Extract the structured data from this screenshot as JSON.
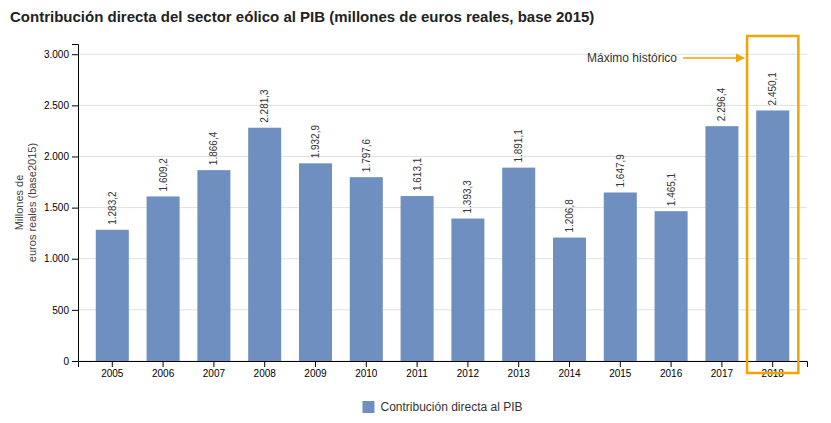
{
  "chart_data": {
    "type": "bar",
    "title": "Contribución directa del sector eólico al PIB (millones de euros reales, base 2015)",
    "ylabel": "Millones de\neuros reales (base2015)",
    "categories": [
      "2005",
      "2006",
      "2007",
      "2008",
      "2009",
      "2010",
      "2011",
      "2012",
      "2013",
      "2014",
      "2015",
      "2016",
      "2017",
      "2018"
    ],
    "series": [
      {
        "name": "Contribución directa al PIB",
        "color": "#6e8fbf",
        "values": [
          1283.2,
          1609.2,
          1866.4,
          2281.3,
          1932.9,
          1797.6,
          1613.1,
          1393.3,
          1891.1,
          1206.8,
          1647.9,
          1465.1,
          2296.4,
          2450.1
        ],
        "value_labels": [
          "1.283,2",
          "1.609,2",
          "1.866,4",
          "2.281,3",
          "1.932,9",
          "1.797,6",
          "1.613,1",
          "1.393,3",
          "1.891,1",
          "1.206,8",
          "1.647,9",
          "1.465,1",
          "2.296,4",
          "2.450,1"
        ]
      }
    ],
    "ylim": [
      0,
      3100
    ],
    "yticks": [
      0,
      500,
      {
        "value": 1000,
        "label": "1.000"
      },
      {
        "value": 1500,
        "label": "1.500"
      },
      {
        "value": 2000,
        "label": "2.000"
      },
      {
        "value": 2500,
        "label": "2.500"
      },
      {
        "value": 3000,
        "label": "3.000"
      }
    ],
    "grid": true,
    "data_labels": true,
    "legend": "bottom",
    "annotations": [
      {
        "text": "Máximo histórico",
        "category": "2018",
        "color": "#f0a500"
      }
    ]
  }
}
